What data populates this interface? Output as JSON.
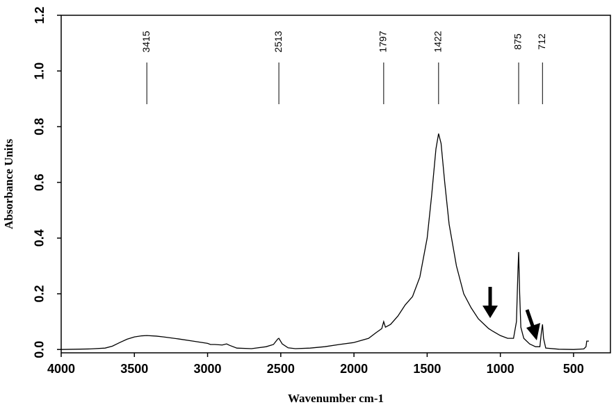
{
  "chart_data": {
    "type": "line",
    "xlabel": "Wavenumber cm-1",
    "ylabel": "Absorbance Units",
    "xlim": [
      4000,
      248
    ],
    "ylim": [
      -0.012,
      1.2
    ],
    "xticks": [
      4000,
      3500,
      3000,
      2500,
      2000,
      1500,
      1000,
      500
    ],
    "yticks": [
      {
        "value": 0,
        "label": "0.0"
      },
      {
        "value": 0.2,
        "label": "0.2"
      },
      {
        "value": 0.4,
        "label": "0.4"
      },
      {
        "value": 0.6,
        "label": "0.6"
      },
      {
        "value": 0.8,
        "label": "0.8"
      },
      {
        "value": 1.0,
        "label": "1.0"
      },
      {
        "value": 1.2,
        "label": "1.2"
      }
    ],
    "peaks": [
      3415,
      2513,
      1797,
      1422,
      875,
      712
    ],
    "series": [
      {
        "color": "#000000",
        "x": [
          4000,
          3900,
          3800,
          3700,
          3650,
          3600,
          3550,
          3500,
          3450,
          3415,
          3350,
          3300,
          3200,
          3100,
          3000,
          2980,
          2950,
          2900,
          2870,
          2850,
          2800,
          2700,
          2600,
          2550,
          2520,
          2513,
          2490,
          2450,
          2400,
          2300,
          2200,
          2100,
          2000,
          1900,
          1850,
          1810,
          1797,
          1785,
          1750,
          1700,
          1650,
          1600,
          1550,
          1500,
          1470,
          1440,
          1422,
          1405,
          1380,
          1350,
          1300,
          1250,
          1200,
          1150,
          1100,
          1080,
          1050,
          1000,
          950,
          910,
          890,
          880,
          875,
          868,
          860,
          840,
          800,
          760,
          730,
          720,
          712,
          705,
          690,
          600,
          500,
          430,
          415,
          410,
          400,
          395
        ],
        "values": [
          0,
          0.001,
          0.002,
          0.005,
          0.012,
          0.025,
          0.037,
          0.045,
          0.049,
          0.05,
          0.048,
          0.045,
          0.038,
          0.03,
          0.022,
          0.018,
          0.018,
          0.016,
          0.02,
          0.015,
          0.005,
          0.003,
          0.01,
          0.018,
          0.038,
          0.04,
          0.02,
          0.006,
          0.003,
          0.005,
          0.01,
          0.018,
          0.025,
          0.04,
          0.06,
          0.075,
          0.1,
          0.08,
          0.09,
          0.12,
          0.16,
          0.19,
          0.26,
          0.4,
          0.55,
          0.72,
          0.775,
          0.74,
          0.6,
          0.45,
          0.3,
          0.2,
          0.15,
          0.11,
          0.085,
          0.075,
          0.065,
          0.05,
          0.04,
          0.04,
          0.1,
          0.28,
          0.35,
          0.2,
          0.08,
          0.04,
          0.02,
          0.01,
          0.01,
          0.06,
          0.09,
          0.04,
          0.005,
          0.001,
          0,
          0.002,
          0.01,
          0.03,
          0.03,
          0.03
        ]
      }
    ]
  }
}
